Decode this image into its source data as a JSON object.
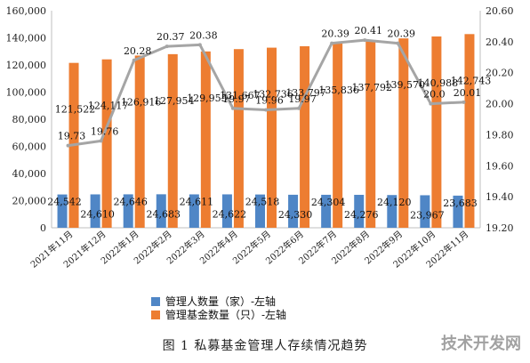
{
  "chart_data": {
    "type": "bar",
    "categories": [
      "2021年11月",
      "2021年12月",
      "2022年1月",
      "2022年2月",
      "2022年3月",
      "2022年4月",
      "2022年5月",
      "2022年6月",
      "2022年7月",
      "2022年8月",
      "2022年9月",
      "2022年10月",
      "2022年11月"
    ],
    "left_axis": {
      "ylim": [
        0,
        160000
      ],
      "ticks": [
        "0",
        "20,000",
        "40,000",
        "60,000",
        "80,000",
        "100,000",
        "120,000",
        "140,000",
        "160,000"
      ]
    },
    "right_axis": {
      "ylim": [
        19.2,
        20.6
      ],
      "ticks": [
        "19.20",
        "19.40",
        "19.60",
        "19.80",
        "20.00",
        "20.20",
        "20.40",
        "20.60"
      ]
    },
    "series": [
      {
        "name": "管理人数量（家）-左轴",
        "type": "bar",
        "axis": "left",
        "color": "#4f86c6",
        "values": [
          24542,
          24610,
          24646,
          24683,
          24611,
          24622,
          24518,
          24330,
          24304,
          24276,
          24120,
          23967,
          23683
        ],
        "labels": [
          "24,542",
          "24,610",
          "24,646",
          "24,683",
          "24,611",
          "24,622",
          "24,518",
          "24,330",
          "24,304",
          "24,276",
          "24,120",
          "23,967",
          "23,683"
        ]
      },
      {
        "name": "管理基金数量（只）-左轴",
        "type": "bar",
        "axis": "left",
        "color": "#ed7d31",
        "values": [
          121522,
          124117,
          126916,
          127954,
          129955,
          131667,
          132736,
          133797,
          135836,
          137792,
          139570,
          140988,
          142743
        ],
        "labels": [
          "121,522",
          "124,117",
          "126,916",
          "127,954",
          "129,955",
          "131,667",
          "132,736",
          "133,797",
          "135,836",
          "137,792",
          "139,570",
          "140,988",
          "142,743"
        ]
      },
      {
        "type": "line",
        "axis": "right",
        "color": "#a5a5a5",
        "values": [
          19.73,
          19.76,
          20.28,
          20.37,
          20.38,
          19.97,
          19.96,
          19.97,
          20.39,
          20.41,
          20.39,
          20.0,
          20.01
        ],
        "labels": [
          "19.73",
          "19.76",
          "20.28",
          "20.37",
          "20.38",
          "19.97",
          "19.96",
          "19.97",
          "20.39",
          "20.41",
          "20.39",
          "20.0",
          "20.01"
        ]
      }
    ],
    "legend_position": "bottom",
    "title": "图 1  私募基金管理人存续情况趋势"
  },
  "watermark": "技术开发网"
}
